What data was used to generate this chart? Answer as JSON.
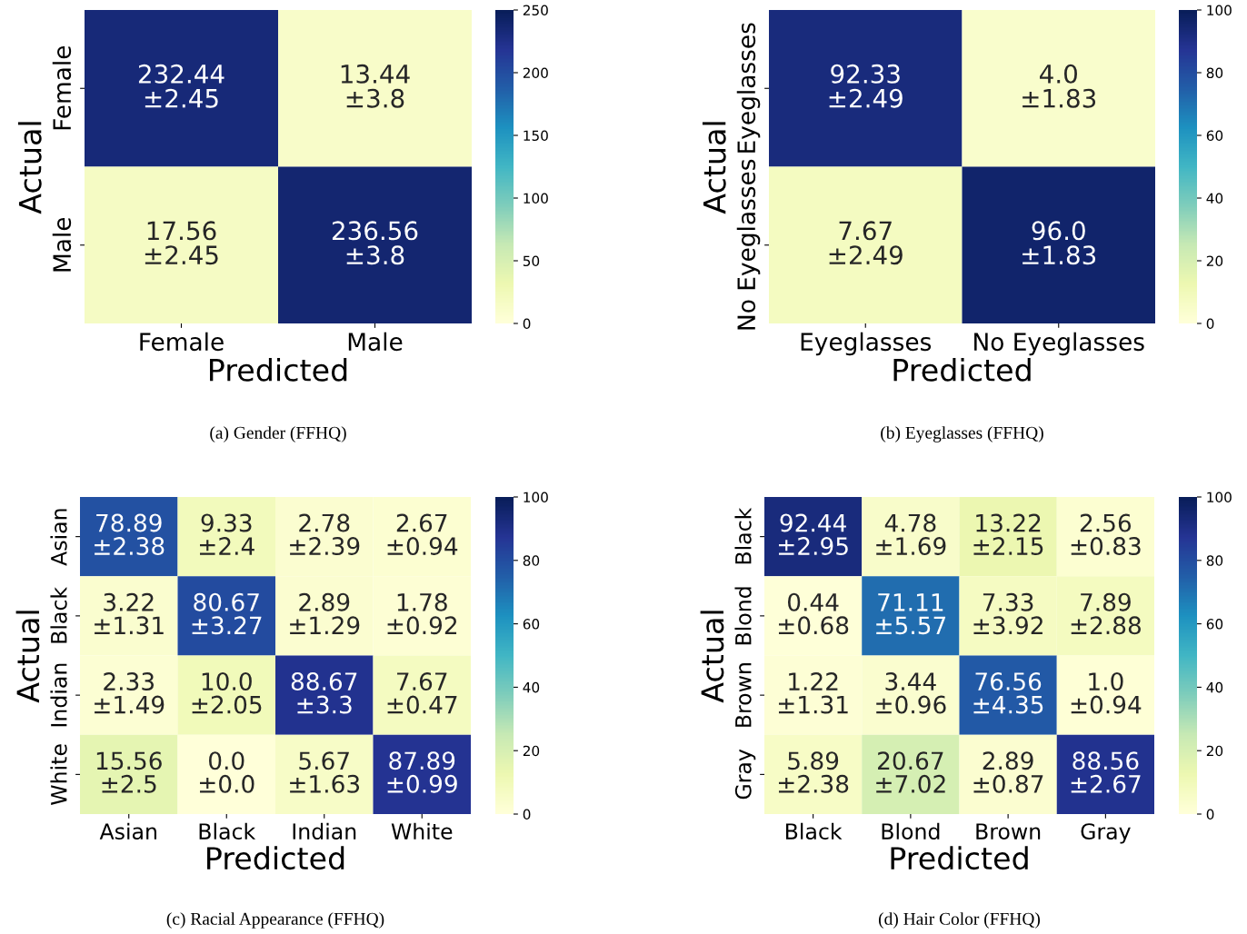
{
  "chart_data": [
    {
      "type": "heatmap",
      "xlabel": "Predicted",
      "ylabel": "Actual",
      "categories": [
        "Female",
        "Male"
      ],
      "y_categories": [
        "Female",
        "Male"
      ],
      "cells": [
        [
          232.44,
          13.44
        ],
        [
          17.56,
          236.56
        ]
      ],
      "cell_labels": [
        [
          "232.44\n±2.45",
          "13.44\n±3.8"
        ],
        [
          "17.56\n±2.45",
          "236.56\n±3.8"
        ]
      ],
      "clim": [
        0,
        250
      ],
      "cticks": [
        0,
        50,
        100,
        150,
        200,
        250
      ],
      "annotations": [
        "(a) Gender (FFHQ)"
      ]
    },
    {
      "type": "heatmap",
      "xlabel": "Predicted",
      "ylabel": "Actual",
      "categories": [
        "Eyeglasses",
        "No Eyeglasses"
      ],
      "y_categories": [
        "Eyeglasses",
        "No Eyeglasses"
      ],
      "cells": [
        [
          92.33,
          4.0
        ],
        [
          7.67,
          96.0
        ]
      ],
      "cell_labels": [
        [
          "92.33\n±2.49",
          "4.0\n±1.83"
        ],
        [
          "7.67\n±2.49",
          "96.0\n±1.83"
        ]
      ],
      "clim": [
        0,
        100
      ],
      "cticks": [
        0,
        20,
        40,
        60,
        80,
        100
      ],
      "annotations": [
        "(b) Eyeglasses (FFHQ)"
      ]
    },
    {
      "type": "heatmap",
      "xlabel": "Predicted",
      "ylabel": "Actual",
      "categories": [
        "Asian",
        "Black",
        "Indian",
        "White"
      ],
      "y_categories": [
        "Asian",
        "Black",
        "Indian",
        "White"
      ],
      "cells": [
        [
          78.89,
          9.33,
          2.78,
          2.67
        ],
        [
          3.22,
          80.67,
          2.89,
          1.78
        ],
        [
          2.33,
          10.0,
          88.67,
          7.67
        ],
        [
          15.56,
          0.0,
          5.67,
          87.89
        ]
      ],
      "cell_labels": [
        [
          "78.89\n±2.38",
          "9.33\n±2.4",
          "2.78\n±2.39",
          "2.67\n±0.94"
        ],
        [
          "3.22\n±1.31",
          "80.67\n±3.27",
          "2.89\n±1.29",
          "1.78\n±0.92"
        ],
        [
          "2.33\n±1.49",
          "10.0\n±2.05",
          "88.67\n±3.3",
          "7.67\n±0.47"
        ],
        [
          "15.56\n±2.5",
          "0.0\n±0.0",
          "5.67\n±1.63",
          "87.89\n±0.99"
        ]
      ],
      "clim": [
        0,
        100
      ],
      "cticks": [
        0,
        20,
        40,
        60,
        80,
        100
      ],
      "annotations": [
        "(c) Racial Appearance (FFHQ)"
      ]
    },
    {
      "type": "heatmap",
      "xlabel": "Predicted",
      "ylabel": "Actual",
      "categories": [
        "Black",
        "Blond",
        "Brown",
        "Gray"
      ],
      "y_categories": [
        "Black",
        "Blond",
        "Brown",
        "Gray"
      ],
      "cells": [
        [
          92.44,
          4.78,
          13.22,
          2.56
        ],
        [
          0.44,
          71.11,
          7.33,
          7.89
        ],
        [
          1.22,
          3.44,
          76.56,
          1.0
        ],
        [
          5.89,
          20.67,
          2.89,
          88.56
        ]
      ],
      "cell_labels": [
        [
          "92.44\n±2.95",
          "4.78\n±1.69",
          "13.22\n±2.15",
          "2.56\n±0.83"
        ],
        [
          "0.44\n±0.68",
          "71.11\n±5.57",
          "7.33\n±3.92",
          "7.89\n±2.88"
        ],
        [
          "1.22\n±1.31",
          "3.44\n±0.96",
          "76.56\n±4.35",
          "1.0\n±0.94"
        ],
        [
          "5.89\n±2.38",
          "20.67\n±7.02",
          "2.89\n±0.87",
          "88.56\n±2.67"
        ]
      ],
      "clim": [
        0,
        100
      ],
      "cticks": [
        0,
        20,
        40,
        60,
        80,
        100
      ],
      "annotations": [
        "(d) Hair Color (FFHQ)"
      ]
    }
  ]
}
